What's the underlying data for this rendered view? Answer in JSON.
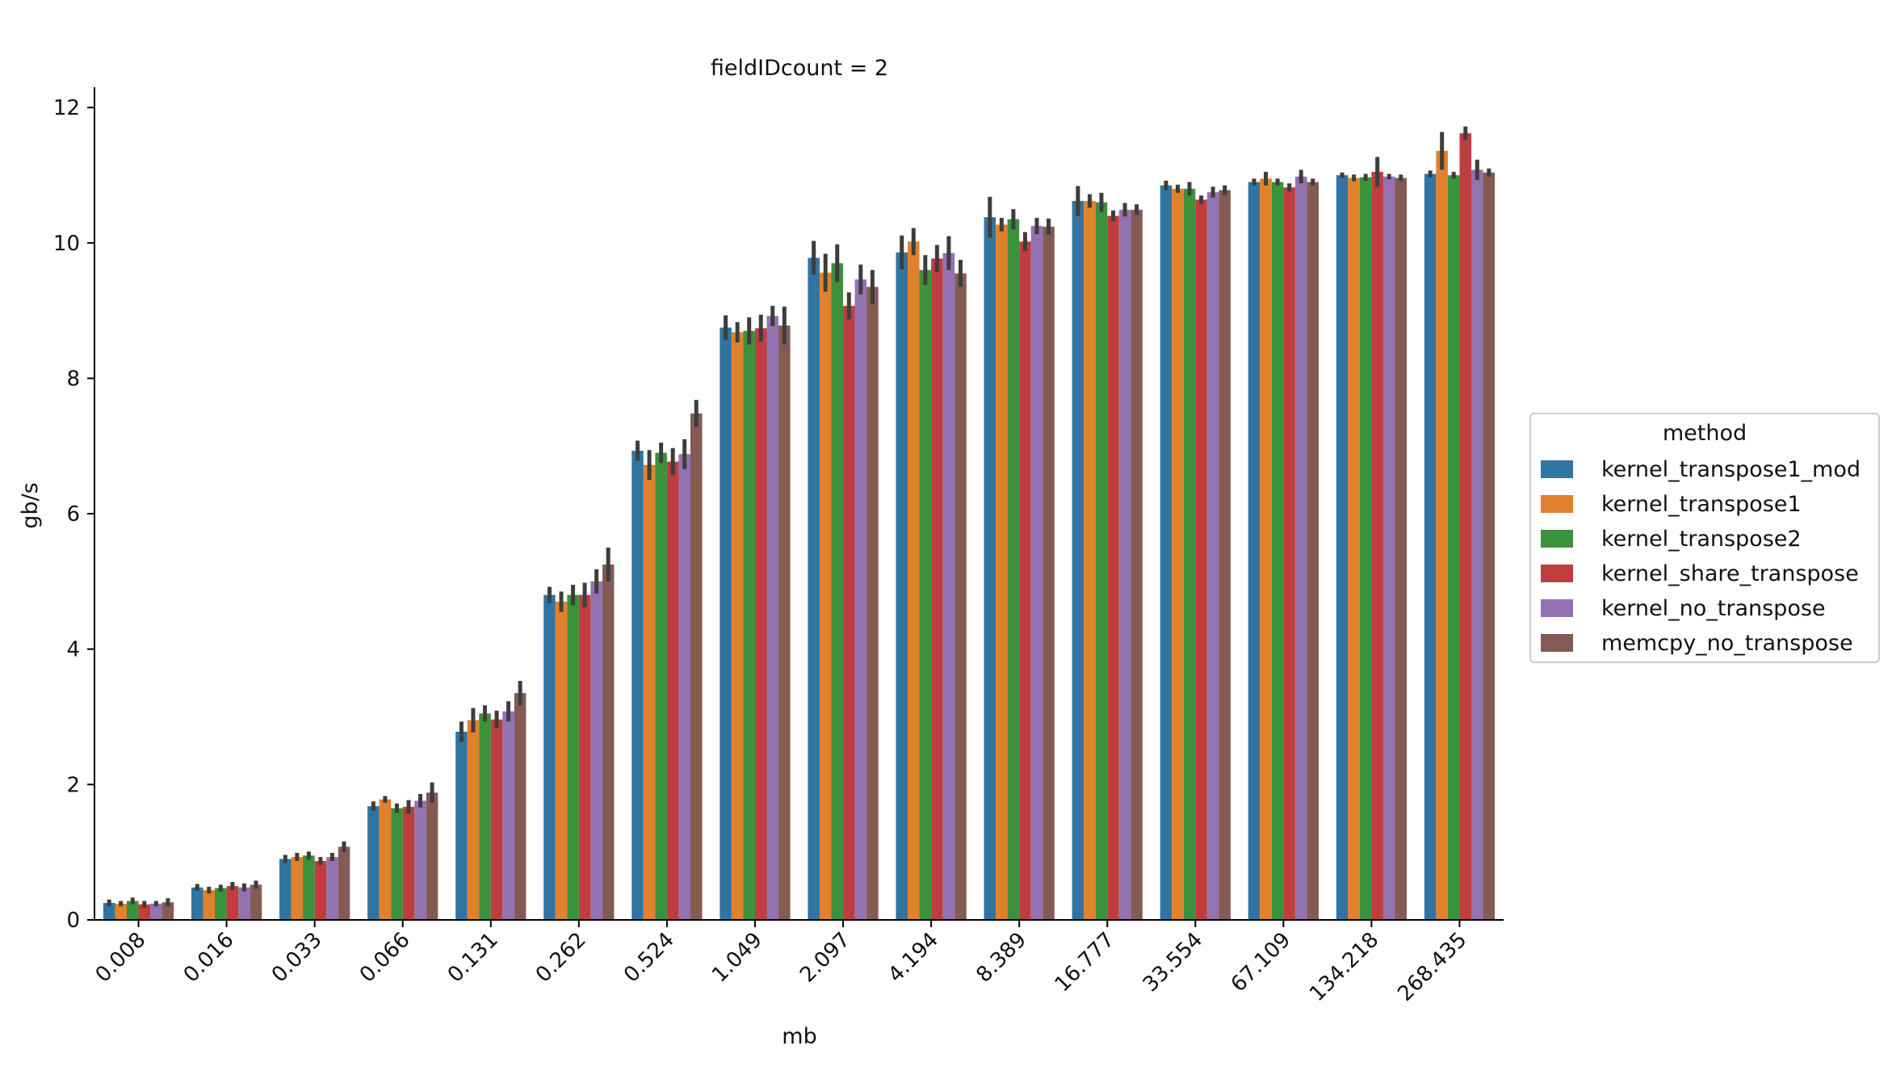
{
  "chart_data": {
    "type": "bar",
    "title": "fieldIDcount = 2",
    "xlabel": "mb",
    "ylabel": "gb/s",
    "ylim": [
      0,
      12.3
    ],
    "yticks": [
      "0",
      "2",
      "4",
      "6",
      "8",
      "10",
      "12"
    ],
    "grid": false,
    "categories": [
      "0.008",
      "0.016",
      "0.033",
      "0.066",
      "0.131",
      "0.262",
      "0.524",
      "1.049",
      "2.097",
      "4.194",
      "8.389",
      "16.777",
      "33.554",
      "67.109",
      "134.218",
      "268.435"
    ],
    "legend": {
      "title": "method",
      "placement": "right, outside plot"
    },
    "series": [
      {
        "name": "kernel_transpose1_mod",
        "color": "#3274a1",
        "values": [
          0.25,
          0.48,
          0.9,
          1.68,
          2.78,
          4.8,
          6.93,
          8.75,
          9.78,
          9.86,
          10.38,
          10.62,
          10.85,
          10.9,
          11.0,
          11.02
        ],
        "err": [
          0.05,
          0.05,
          0.06,
          0.07,
          0.15,
          0.12,
          0.15,
          0.18,
          0.25,
          0.25,
          0.3,
          0.22,
          0.07,
          0.05,
          0.04,
          0.05
        ]
      },
      {
        "name": "kernel_transpose1",
        "color": "#e1812c",
        "values": [
          0.24,
          0.44,
          0.93,
          1.78,
          2.95,
          4.7,
          6.72,
          8.68,
          9.56,
          10.02,
          10.27,
          10.62,
          10.8,
          10.95,
          10.96,
          11.36
        ],
        "err": [
          0.04,
          0.05,
          0.06,
          0.05,
          0.18,
          0.15,
          0.22,
          0.15,
          0.28,
          0.2,
          0.1,
          0.1,
          0.06,
          0.1,
          0.05,
          0.28
        ]
      },
      {
        "name": "kernel_transpose2",
        "color": "#3a923a",
        "values": [
          0.28,
          0.47,
          0.95,
          1.65,
          3.05,
          4.8,
          6.9,
          8.7,
          9.7,
          9.6,
          10.35,
          10.6,
          10.8,
          10.9,
          10.97,
          11.0
        ],
        "err": [
          0.05,
          0.05,
          0.06,
          0.07,
          0.12,
          0.15,
          0.15,
          0.2,
          0.28,
          0.22,
          0.15,
          0.14,
          0.1,
          0.05,
          0.05,
          0.05
        ]
      },
      {
        "name": "kernel_share_transpose",
        "color": "#c03d3e",
        "values": [
          0.23,
          0.5,
          0.87,
          1.67,
          2.96,
          4.8,
          6.77,
          8.74,
          9.07,
          9.77,
          10.02,
          10.4,
          10.64,
          10.82,
          11.05,
          11.62
        ],
        "err": [
          0.05,
          0.06,
          0.06,
          0.1,
          0.13,
          0.18,
          0.2,
          0.2,
          0.2,
          0.2,
          0.14,
          0.08,
          0.06,
          0.06,
          0.22,
          0.1
        ]
      },
      {
        "name": "kernel_no_transpose",
        "color": "#9372b2",
        "values": [
          0.24,
          0.48,
          0.93,
          1.76,
          3.08,
          5.0,
          6.88,
          8.92,
          9.46,
          9.85,
          10.25,
          10.49,
          10.75,
          10.98,
          10.98,
          11.08
        ],
        "err": [
          0.04,
          0.06,
          0.06,
          0.1,
          0.15,
          0.18,
          0.22,
          0.15,
          0.22,
          0.25,
          0.12,
          0.1,
          0.08,
          0.1,
          0.04,
          0.15
        ]
      },
      {
        "name": "memcpy_no_transpose",
        "color": "#845b53",
        "values": [
          0.26,
          0.52,
          1.08,
          1.88,
          3.35,
          5.25,
          7.48,
          8.78,
          9.35,
          9.55,
          10.24,
          10.49,
          10.78,
          10.9,
          10.96,
          11.04
        ],
        "err": [
          0.06,
          0.06,
          0.08,
          0.15,
          0.18,
          0.25,
          0.2,
          0.28,
          0.25,
          0.2,
          0.12,
          0.08,
          0.07,
          0.05,
          0.05,
          0.06
        ]
      }
    ]
  }
}
